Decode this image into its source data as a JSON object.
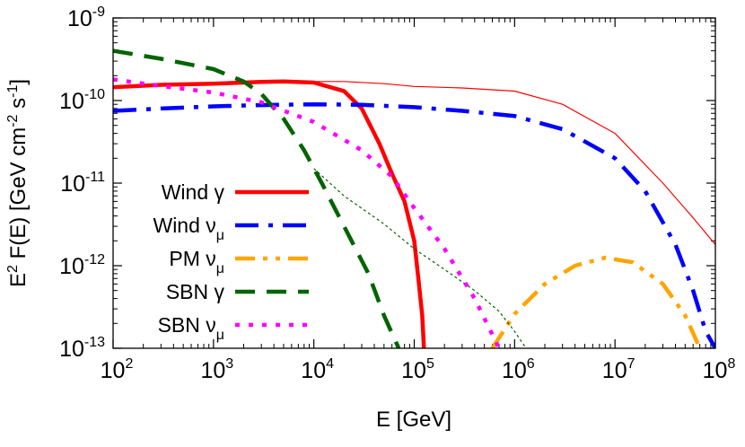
{
  "chart_data": {
    "type": "line",
    "scale": {
      "x": "log",
      "y": "log"
    },
    "xlabel": "E [GeV]",
    "ylabel": "E^2 F(E) [GeV cm^-2 s^-1]",
    "xlim": [
      100,
      100000000
    ],
    "ylim": [
      1e-13,
      1e-09
    ],
    "grid": false,
    "legend_position": "bottom-left",
    "x_ticks": [
      {
        "base": "10",
        "exp": "2"
      },
      {
        "base": "10",
        "exp": "3"
      },
      {
        "base": "10",
        "exp": "4"
      },
      {
        "base": "10",
        "exp": "5"
      },
      {
        "base": "10",
        "exp": "6"
      },
      {
        "base": "10",
        "exp": "7"
      },
      {
        "base": "10",
        "exp": "8"
      }
    ],
    "y_ticks": [
      {
        "base": "10",
        "exp": "-13"
      },
      {
        "base": "10",
        "exp": "-12"
      },
      {
        "base": "10",
        "exp": "-11"
      },
      {
        "base": "10",
        "exp": "-10"
      },
      {
        "base": "10",
        "exp": "-9"
      }
    ],
    "series": [
      {
        "name": "Wind γ",
        "legend": {
          "main": "Wind γ",
          "sub": ""
        },
        "color": "#ff0000",
        "style": "solid",
        "in_legend": true,
        "points": [
          [
            100,
            1.45e-10
          ],
          [
            300,
            1.55e-10
          ],
          [
            1000,
            1.6e-10
          ],
          [
            3000,
            1.68e-10
          ],
          [
            5000,
            1.7e-10
          ],
          [
            10000,
            1.65e-10
          ],
          [
            20000,
            1.3e-10
          ],
          [
            30000,
            8e-11
          ],
          [
            45000,
            3e-11
          ],
          [
            60000,
            1.3e-11
          ],
          [
            80000,
            6e-12
          ],
          [
            100000,
            2e-12
          ],
          [
            110000,
            7e-13
          ],
          [
            120000,
            2.5e-13
          ],
          [
            125000,
            1e-13
          ]
        ]
      },
      {
        "name": "Wind γ (unabsorbed)",
        "legend": {
          "main": "",
          "sub": ""
        },
        "color": "#ff0000",
        "style": "thin",
        "in_legend": false,
        "points": [
          [
            5000,
            1.7e-10
          ],
          [
            20000,
            1.7e-10
          ],
          [
            50000,
            1.6e-10
          ],
          [
            100000,
            1.48e-10
          ],
          [
            300000,
            1.42e-10
          ],
          [
            1000000,
            1.3e-10
          ],
          [
            3000000,
            9e-11
          ],
          [
            10000000,
            4e-11
          ],
          [
            30000000,
            1e-11
          ],
          [
            60000000,
            3.8e-12
          ],
          [
            100000000,
            1.8e-12
          ]
        ]
      },
      {
        "name": "Wind ν_μ",
        "legend": {
          "main": "Wind ν",
          "sub": "μ"
        },
        "color": "#0000ff",
        "style": "dash-dot",
        "in_legend": true,
        "points": [
          [
            100,
            7.5e-11
          ],
          [
            300,
            8e-11
          ],
          [
            1000,
            8.5e-11
          ],
          [
            3000,
            8.8e-11
          ],
          [
            10000,
            9e-11
          ],
          [
            30000,
            8.9e-11
          ],
          [
            100000,
            8.3e-11
          ],
          [
            300000,
            7.5e-11
          ],
          [
            1000000,
            6.5e-11
          ],
          [
            3000000,
            4.5e-11
          ],
          [
            10000000,
            2e-11
          ],
          [
            20000000,
            8e-12
          ],
          [
            40000000,
            1.8e-12
          ],
          [
            60000000,
            5e-13
          ],
          [
            80000000,
            1.6e-13
          ],
          [
            100000000,
            1e-13
          ]
        ]
      },
      {
        "name": "PM ν_μ",
        "legend": {
          "main": "PM ν",
          "sub": "μ"
        },
        "color": "#ffa500",
        "style": "dash-dot-dot",
        "in_legend": true,
        "points": [
          [
            600000,
            1e-13
          ],
          [
            1000000,
            2.6e-13
          ],
          [
            2000000,
            6e-13
          ],
          [
            4000000,
            1e-12
          ],
          [
            8000000,
            1.25e-12
          ],
          [
            15000000,
            1.1e-12
          ],
          [
            30000000,
            6e-13
          ],
          [
            50000000,
            2.5e-13
          ],
          [
            70000000,
            1e-13
          ]
        ]
      },
      {
        "name": "SBN γ",
        "legend": {
          "main": "SBN γ",
          "sub": ""
        },
        "color": "#006400",
        "style": "dashed",
        "in_legend": true,
        "points": [
          [
            100,
            4e-10
          ],
          [
            300,
            3.2e-10
          ],
          [
            1000,
            2.4e-10
          ],
          [
            2000,
            1.7e-10
          ],
          [
            3000,
            1.2e-10
          ],
          [
            5000,
            6e-11
          ],
          [
            8000,
            2.5e-11
          ],
          [
            12000,
            1e-11
          ],
          [
            20000,
            3e-12
          ],
          [
            35000,
            8e-13
          ],
          [
            50000,
            2.5e-13
          ],
          [
            70000,
            1e-13
          ]
        ]
      },
      {
        "name": "SBN γ (unabsorbed)",
        "legend": {
          "main": "",
          "sub": ""
        },
        "color": "#006400",
        "style": "thin-dashed",
        "in_legend": false,
        "points": [
          [
            10000,
            1.5e-11
          ],
          [
            20000,
            7e-12
          ],
          [
            50000,
            3.2e-12
          ],
          [
            100000,
            1.6e-12
          ],
          [
            200000,
            9e-13
          ],
          [
            400000,
            5e-13
          ],
          [
            700000,
            2.8e-13
          ],
          [
            1000000,
            1.6e-13
          ],
          [
            1300000,
            1e-13
          ]
        ]
      },
      {
        "name": "SBN ν_μ",
        "legend": {
          "main": "SBN ν",
          "sub": "μ"
        },
        "color": "#ff00ff",
        "style": "dotted",
        "in_legend": true,
        "points": [
          [
            100,
            1.8e-10
          ],
          [
            300,
            1.5e-10
          ],
          [
            1000,
            1.25e-10
          ],
          [
            3000,
            9.5e-11
          ],
          [
            10000,
            5.5e-11
          ],
          [
            30000,
            2.5e-11
          ],
          [
            60000,
            1.2e-11
          ],
          [
            100000,
            5e-12
          ],
          [
            200000,
            1.6e-12
          ],
          [
            400000,
            4e-13
          ],
          [
            700000,
            1e-13
          ]
        ]
      }
    ]
  }
}
